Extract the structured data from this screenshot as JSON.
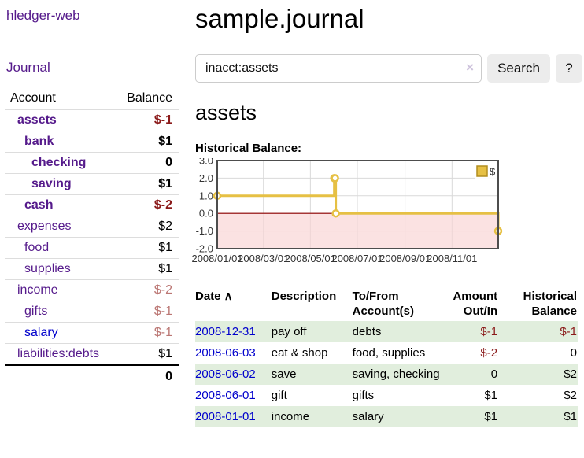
{
  "app": {
    "title": "hledger-web"
  },
  "sidebar": {
    "journal_link": "Journal",
    "table": {
      "account_header": "Account",
      "balance_header": "Balance",
      "rows": [
        {
          "name": "assets",
          "balance": "$-1",
          "level": 1,
          "bold": true,
          "value_style": "neg",
          "link": "visited"
        },
        {
          "name": "bank",
          "balance": "$1",
          "level": 2,
          "bold": true,
          "value_style": "pos",
          "link": "visited"
        },
        {
          "name": "checking",
          "balance": "0",
          "level": 3,
          "bold": true,
          "value_style": "pos",
          "link": "visited"
        },
        {
          "name": "saving",
          "balance": "$1",
          "level": 3,
          "bold": true,
          "value_style": "pos",
          "link": "visited"
        },
        {
          "name": "cash",
          "balance": "$-2",
          "level": 2,
          "bold": true,
          "value_style": "neg",
          "link": "visited"
        },
        {
          "name": "expenses",
          "balance": "$2",
          "level": 1,
          "bold": false,
          "value_style": "pos",
          "link": "visited"
        },
        {
          "name": "food",
          "balance": "$1",
          "level": 2,
          "bold": false,
          "value_style": "pos",
          "link": "visited"
        },
        {
          "name": "supplies",
          "balance": "$1",
          "level": 2,
          "bold": false,
          "value_style": "pos",
          "link": "visited"
        },
        {
          "name": "income",
          "balance": "$-2",
          "level": 1,
          "bold": false,
          "value_style": "negdim",
          "link": "visited"
        },
        {
          "name": "gifts",
          "balance": "$-1",
          "level": 2,
          "bold": false,
          "value_style": "negdim",
          "link": "visited"
        },
        {
          "name": "salary",
          "balance": "$-1",
          "level": 2,
          "bold": false,
          "value_style": "negdim",
          "link": "unvisited"
        },
        {
          "name": "liabilities:debts",
          "balance": "$1",
          "level": 1,
          "bold": false,
          "value_style": "pos",
          "link": "visited"
        }
      ],
      "total": "0"
    }
  },
  "header": {
    "title": "sample.journal"
  },
  "search": {
    "value": "inacct:assets",
    "clear_icon": "×",
    "button_label": "Search",
    "help_label": "?"
  },
  "account_page": {
    "title": "assets",
    "chart_heading": "Historical Balance:"
  },
  "chart_data": {
    "type": "line",
    "style": "step-after",
    "title": "Historical Balance",
    "series": [
      {
        "name": "$",
        "color": "#e6c044",
        "x": [
          "2008-01-01",
          "2008-06-01",
          "2008-06-02",
          "2008-06-03",
          "2008-12-31"
        ],
        "y": [
          1,
          2,
          2,
          0,
          -1
        ]
      }
    ],
    "x_ticks": [
      "2008/01/01",
      "2008/03/01",
      "2008/05/01",
      "2008/07/01",
      "2008/09/01",
      "2008/11/01"
    ],
    "y_ticks": [
      3.0,
      2.0,
      1.0,
      0.0,
      -1.0,
      -2.0
    ],
    "xlim": [
      "2008-01-01",
      "2008-12-31"
    ],
    "ylim": [
      -2,
      3
    ],
    "grid": true,
    "legend": {
      "label": "$",
      "position": "top-right"
    },
    "negative_region_color": "#f9d2d2",
    "zero_line_color": "#8b0000",
    "grid_color": "#d9d9d9",
    "border_color": "#4d4d4d"
  },
  "register": {
    "columns": [
      {
        "line1": "Date",
        "line2": "",
        "sort_icon": "∧",
        "align": "left"
      },
      {
        "line1": "Description",
        "line2": "",
        "align": "left"
      },
      {
        "line1": "To/From",
        "line2": "Account(s)",
        "align": "left"
      },
      {
        "line1": "Amount",
        "line2": "Out/In",
        "align": "right"
      },
      {
        "line1": "Historical",
        "line2": "Balance",
        "align": "right"
      }
    ],
    "rows": [
      {
        "date": "2008-12-31",
        "description": "pay off",
        "accounts": "debts",
        "amount": "$-1",
        "balance": "$-1",
        "amount_neg": true,
        "balance_neg": true
      },
      {
        "date": "2008-06-03",
        "description": "eat & shop",
        "accounts": "food, supplies",
        "amount": "$-2",
        "balance": "0",
        "amount_neg": true,
        "balance_neg": false
      },
      {
        "date": "2008-06-02",
        "description": "save",
        "accounts": "saving, checking",
        "amount": "0",
        "balance": "$2",
        "amount_neg": false,
        "balance_neg": false
      },
      {
        "date": "2008-06-01",
        "description": "gift",
        "accounts": "gifts",
        "amount": "$1",
        "balance": "$2",
        "amount_neg": false,
        "balance_neg": false
      },
      {
        "date": "2008-01-01",
        "description": "income",
        "accounts": "salary",
        "amount": "$1",
        "balance": "$1",
        "amount_neg": false,
        "balance_neg": false
      }
    ]
  }
}
